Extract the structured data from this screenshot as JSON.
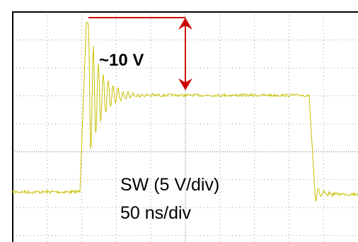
{
  "annotations": {
    "amplitude": "~10 V",
    "channel": "SW (5 V/div)",
    "timebase": "50 ns/div"
  }
}
